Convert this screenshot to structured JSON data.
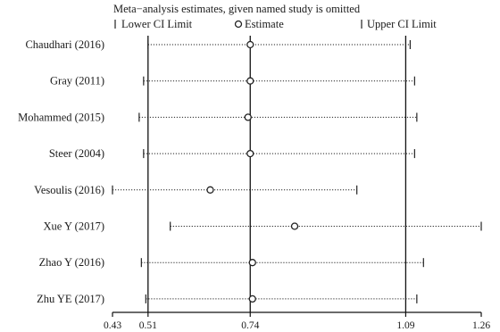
{
  "chart_data": {
    "type": "forest",
    "title": "Meta−analysis estimates, given named study is omitted",
    "legend": [
      {
        "key": "lower",
        "label": "Lower CI Limit"
      },
      {
        "key": "estimate",
        "label": "Estimate"
      },
      {
        "key": "upper",
        "label": "Upper CI Limit"
      }
    ],
    "xlim": [
      0.43,
      1.26
    ],
    "x_ticks": [
      0.43,
      0.51,
      0.74,
      1.09,
      1.26
    ],
    "x_tick_labels": [
      "0.43",
      "0.51",
      "0.74",
      "1.09",
      "1.26"
    ],
    "reference_lines": [
      0.51,
      0.74,
      1.09
    ],
    "studies": [
      {
        "label": "Chaudhari (2016)",
        "lower": 0.51,
        "estimate": 0.74,
        "upper": 1.1
      },
      {
        "label": "Gray (2011)",
        "lower": 0.5,
        "estimate": 0.74,
        "upper": 1.11
      },
      {
        "label": "Mohammed (2015)",
        "lower": 0.49,
        "estimate": 0.735,
        "upper": 1.115
      },
      {
        "label": "Steer (2004)",
        "lower": 0.5,
        "estimate": 0.74,
        "upper": 1.11
      },
      {
        "label": "Vesoulis (2016)",
        "lower": 0.43,
        "estimate": 0.65,
        "upper": 0.98
      },
      {
        "label": "Xue Y (2017)",
        "lower": 0.56,
        "estimate": 0.84,
        "upper": 1.26
      },
      {
        "label": "Zhao Y (2016)",
        "lower": 0.495,
        "estimate": 0.745,
        "upper": 1.13
      },
      {
        "label": "Zhu YE (2017)",
        "lower": 0.505,
        "estimate": 0.745,
        "upper": 1.115
      }
    ]
  }
}
